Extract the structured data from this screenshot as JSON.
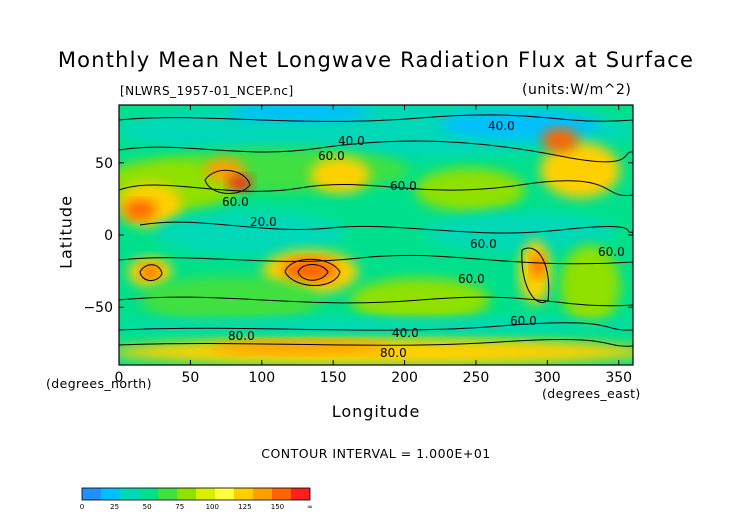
{
  "chart_data": {
    "type": "heatmap",
    "title": "Monthly Mean Net Longwave Radiation Flux at Surface",
    "file_label": "[NLWRS_1957-01_NCEP.nc]",
    "units_label": "(units:W/m^2)",
    "xlabel": "Longitude",
    "ylabel": "Latitude",
    "x_units": "(degrees_east)",
    "y_units": "(degrees_north)",
    "contour_interval_label": "CONTOUR INTERVAL = 1.000E+01",
    "xlim": [
      0,
      360
    ],
    "ylim": [
      -90,
      90
    ],
    "x_ticks": [
      "0",
      "50",
      "100",
      "150",
      "200",
      "250",
      "300",
      "350"
    ],
    "y_ticks": [
      "50",
      "0",
      "−50"
    ],
    "contour_labels": [
      "40.0",
      "40.0",
      "60.0",
      "60.0",
      "60.0",
      "20.0",
      "60.0",
      "60.0",
      "60.0",
      "60.0",
      "40.0",
      "80.0",
      "80.0"
    ],
    "colorbar": {
      "ticks": [
        "0",
        "25",
        "50",
        "75",
        "100",
        "125",
        "150",
        "∞"
      ],
      "colors": [
        "#1e90ff",
        "#00bfff",
        "#00d8b8",
        "#00e08c",
        "#40e040",
        "#90e000",
        "#d8f000",
        "#ffff40",
        "#ffd000",
        "#ff9f00",
        "#ff6400",
        "#ff1e1e"
      ]
    }
  }
}
